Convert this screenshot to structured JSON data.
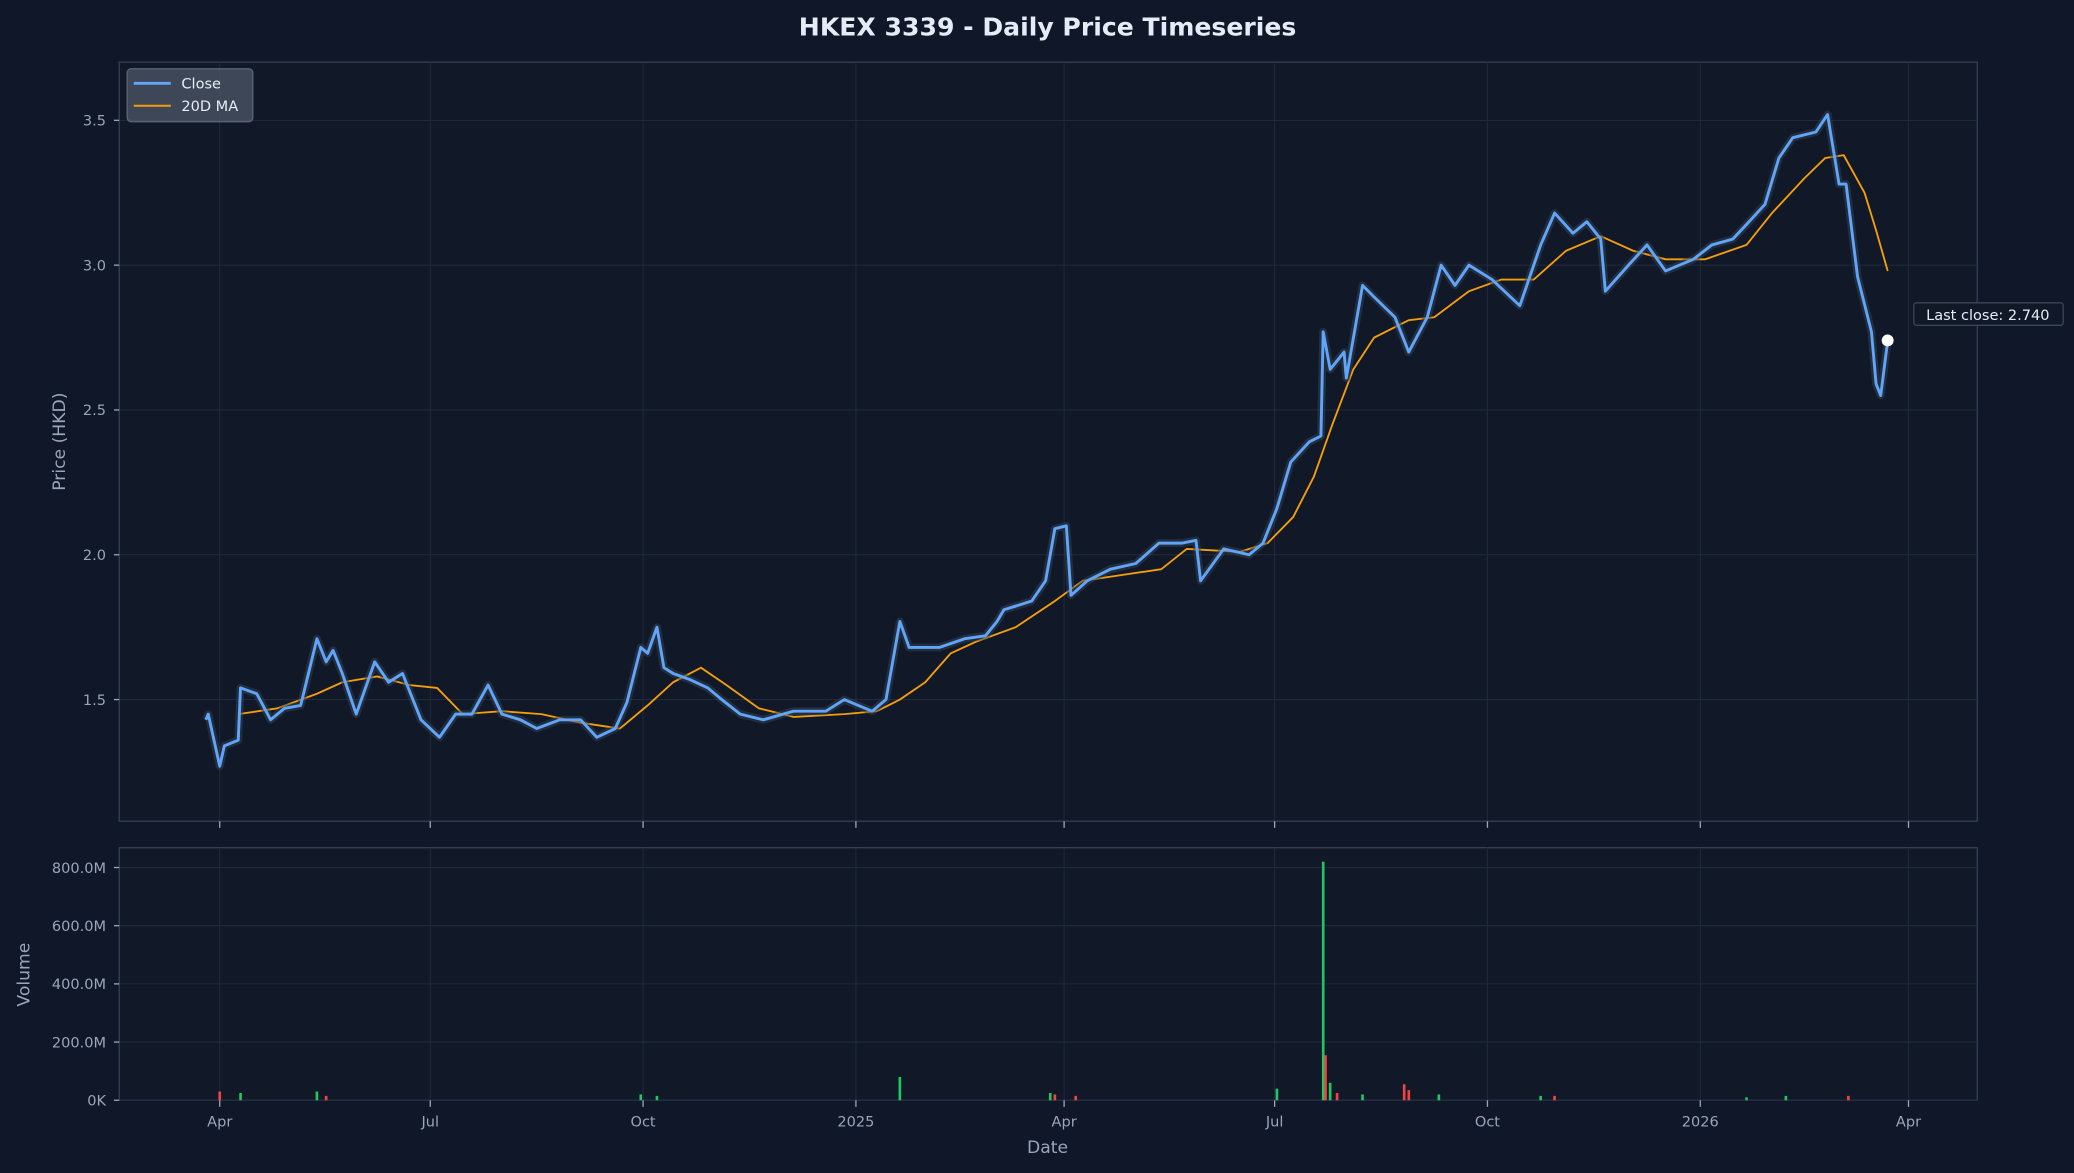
{
  "chart_data": [
    {
      "type": "line",
      "title": "HKEX 3339 - Daily Price Timeseries",
      "xlabel": "",
      "ylabel": "Price (HKD)",
      "ylim": [
        1.08,
        3.71
      ],
      "yticks": [
        "1.5",
        "2.0",
        "2.5",
        "3.0",
        "3.5"
      ],
      "grid": true,
      "legend_position": "top-left",
      "annotation": "Last close: 2.740",
      "series": [
        {
          "name": "Close",
          "color": "#60a5fa",
          "points": [
            [
              "2024-03-26",
              1.43
            ],
            [
              "2024-03-27",
              1.45
            ],
            [
              "2024-04-01",
              1.27
            ],
            [
              "2024-04-03",
              1.34
            ],
            [
              "2024-04-09",
              1.36
            ],
            [
              "2024-04-10",
              1.54
            ],
            [
              "2024-04-17",
              1.52
            ],
            [
              "2024-04-23",
              1.43
            ],
            [
              "2024-04-29",
              1.47
            ],
            [
              "2024-05-06",
              1.48
            ],
            [
              "2024-05-13",
              1.71
            ],
            [
              "2024-05-17",
              1.63
            ],
            [
              "2024-05-20",
              1.67
            ],
            [
              "2024-05-24",
              1.59
            ],
            [
              "2024-05-30",
              1.45
            ],
            [
              "2024-06-07",
              1.63
            ],
            [
              "2024-06-13",
              1.56
            ],
            [
              "2024-06-19",
              1.59
            ],
            [
              "2024-06-27",
              1.43
            ],
            [
              "2024-07-05",
              1.37
            ],
            [
              "2024-07-12",
              1.45
            ],
            [
              "2024-07-19",
              1.45
            ],
            [
              "2024-07-26",
              1.55
            ],
            [
              "2024-08-01",
              1.45
            ],
            [
              "2024-08-09",
              1.43
            ],
            [
              "2024-08-16",
              1.4
            ],
            [
              "2024-08-26",
              1.43
            ],
            [
              "2024-09-04",
              1.43
            ],
            [
              "2024-09-11",
              1.37
            ],
            [
              "2024-09-19",
              1.4
            ],
            [
              "2024-09-24",
              1.49
            ],
            [
              "2024-09-30",
              1.68
            ],
            [
              "2024-10-03",
              1.66
            ],
            [
              "2024-10-07",
              1.75
            ],
            [
              "2024-10-10",
              1.61
            ],
            [
              "2024-10-14",
              1.59
            ],
            [
              "2024-10-21",
              1.57
            ],
            [
              "2024-10-29",
              1.54
            ],
            [
              "2024-11-04",
              1.5
            ],
            [
              "2024-11-12",
              1.45
            ],
            [
              "2024-11-22",
              1.43
            ],
            [
              "2024-12-05",
              1.46
            ],
            [
              "2024-12-19",
              1.46
            ],
            [
              "2024-12-27",
              1.5
            ],
            [
              "2025-01-08",
              1.46
            ],
            [
              "2025-01-14",
              1.5
            ],
            [
              "2025-01-20",
              1.77
            ],
            [
              "2025-01-24",
              1.68
            ],
            [
              "2025-02-06",
              1.68
            ],
            [
              "2025-02-17",
              1.71
            ],
            [
              "2025-02-26",
              1.72
            ],
            [
              "2025-03-03",
              1.77
            ],
            [
              "2025-03-06",
              1.81
            ],
            [
              "2025-03-18",
              1.84
            ],
            [
              "2025-03-24",
              1.91
            ],
            [
              "2025-03-28",
              2.09
            ],
            [
              "2025-04-02",
              2.1
            ],
            [
              "2025-04-04",
              1.86
            ],
            [
              "2025-04-11",
              1.91
            ],
            [
              "2025-04-21",
              1.95
            ],
            [
              "2025-05-02",
              1.97
            ],
            [
              "2025-05-12",
              2.04
            ],
            [
              "2025-05-22",
              2.04
            ],
            [
              "2025-05-28",
              2.05
            ],
            [
              "2025-05-30",
              1.91
            ],
            [
              "2025-06-09",
              2.02
            ],
            [
              "2025-06-20",
              2.0
            ],
            [
              "2025-06-26",
              2.04
            ],
            [
              "2025-07-02",
              2.16
            ],
            [
              "2025-07-08",
              2.32
            ],
            [
              "2025-07-16",
              2.39
            ],
            [
              "2025-07-21",
              2.41
            ],
            [
              "2025-07-22",
              2.77
            ],
            [
              "2025-07-25",
              2.64
            ],
            [
              "2025-07-31",
              2.7
            ],
            [
              "2025-08-01",
              2.61
            ],
            [
              "2025-08-08",
              2.93
            ],
            [
              "2025-08-13",
              2.89
            ],
            [
              "2025-08-22",
              2.82
            ],
            [
              "2025-08-28",
              2.7
            ],
            [
              "2025-09-05",
              2.82
            ],
            [
              "2025-09-11",
              3.0
            ],
            [
              "2025-09-17",
              2.93
            ],
            [
              "2025-09-23",
              3.0
            ],
            [
              "2025-10-03",
              2.95
            ],
            [
              "2025-10-15",
              2.86
            ],
            [
              "2025-10-24",
              3.07
            ],
            [
              "2025-10-30",
              3.18
            ],
            [
              "2025-11-07",
              3.11
            ],
            [
              "2025-11-13",
              3.15
            ],
            [
              "2025-11-19",
              3.09
            ],
            [
              "2025-11-21",
              2.91
            ],
            [
              "2025-12-01",
              3.0
            ],
            [
              "2025-12-09",
              3.07
            ],
            [
              "2025-12-17",
              2.98
            ],
            [
              "2025-12-29",
              3.02
            ],
            [
              "2026-01-06",
              3.07
            ],
            [
              "2026-01-15",
              3.09
            ],
            [
              "2026-01-21",
              3.14
            ],
            [
              "2026-01-29",
              3.21
            ],
            [
              "2026-02-04",
              3.37
            ],
            [
              "2026-02-10",
              3.44
            ],
            [
              "2026-02-20",
              3.46
            ],
            [
              "2026-02-25",
              3.52
            ],
            [
              "2026-03-02",
              3.28
            ],
            [
              "2026-03-05",
              3.28
            ],
            [
              "2026-03-10",
              2.96
            ],
            [
              "2026-03-16",
              2.77
            ],
            [
              "2026-03-18",
              2.59
            ],
            [
              "2026-03-20",
              2.55
            ],
            [
              "2026-03-23",
              2.74
            ]
          ]
        },
        {
          "name": "20D MA",
          "color": "#f59e0b",
          "points": [
            [
              "2024-04-09",
              1.45
            ],
            [
              "2024-04-26",
              1.47
            ],
            [
              "2024-05-13",
              1.52
            ],
            [
              "2024-05-24",
              1.56
            ],
            [
              "2024-06-08",
              1.58
            ],
            [
              "2024-06-22",
              1.55
            ],
            [
              "2024-07-04",
              1.54
            ],
            [
              "2024-07-15",
              1.45
            ],
            [
              "2024-08-01",
              1.46
            ],
            [
              "2024-08-18",
              1.45
            ],
            [
              "2024-09-04",
              1.42
            ],
            [
              "2024-09-21",
              1.4
            ],
            [
              "2024-10-03",
              1.48
            ],
            [
              "2024-10-14",
              1.56
            ],
            [
              "2024-10-26",
              1.61
            ],
            [
              "2024-11-06",
              1.55
            ],
            [
              "2024-11-20",
              1.47
            ],
            [
              "2024-12-05",
              1.44
            ],
            [
              "2024-12-27",
              1.45
            ],
            [
              "2025-01-10",
              1.46
            ],
            [
              "2025-01-20",
              1.5
            ],
            [
              "2025-01-31",
              1.56
            ],
            [
              "2025-02-11",
              1.66
            ],
            [
              "2025-02-22",
              1.7
            ],
            [
              "2025-03-11",
              1.75
            ],
            [
              "2025-03-28",
              1.84
            ],
            [
              "2025-04-09",
              1.91
            ],
            [
              "2025-04-26",
              1.93
            ],
            [
              "2025-05-13",
              1.95
            ],
            [
              "2025-05-24",
              2.02
            ],
            [
              "2025-06-16",
              2.01
            ],
            [
              "2025-06-28",
              2.04
            ],
            [
              "2025-07-09",
              2.13
            ],
            [
              "2025-07-18",
              2.27
            ],
            [
              "2025-07-26",
              2.45
            ],
            [
              "2025-08-04",
              2.64
            ],
            [
              "2025-08-13",
              2.75
            ],
            [
              "2025-08-28",
              2.81
            ],
            [
              "2025-09-08",
              2.82
            ],
            [
              "2025-09-23",
              2.91
            ],
            [
              "2025-10-07",
              2.95
            ],
            [
              "2025-10-21",
              2.95
            ],
            [
              "2025-11-04",
              3.05
            ],
            [
              "2025-11-19",
              3.1
            ],
            [
              "2025-12-03",
              3.05
            ],
            [
              "2025-12-17",
              3.02
            ],
            [
              "2026-01-03",
              3.02
            ],
            [
              "2026-01-21",
              3.07
            ],
            [
              "2026-02-01",
              3.18
            ],
            [
              "2026-02-15",
              3.3
            ],
            [
              "2026-02-24",
              3.37
            ],
            [
              "2026-03-04",
              3.38
            ],
            [
              "2026-03-13",
              3.25
            ],
            [
              "2026-03-18",
              3.12
            ],
            [
              "2026-03-23",
              2.98
            ]
          ]
        }
      ],
      "last_close": {
        "date": "2026-03-23",
        "value": 2.74
      }
    },
    {
      "type": "bar",
      "xlabel": "Date",
      "ylabel": "Volume",
      "ylim": [
        0,
        870
      ],
      "unit": "M",
      "yticks": [
        "0K",
        "200.0M",
        "400.0M",
        "600.0M",
        "800.0M"
      ],
      "xticks": [
        "Apr",
        "Jul",
        "Oct",
        "2025",
        "Apr",
        "Jul",
        "Oct",
        "2026",
        "Apr"
      ],
      "xtick_dates": [
        "2024-04-01",
        "2024-07-01",
        "2024-10-01",
        "2025-01-01",
        "2025-04-01",
        "2025-07-01",
        "2025-10-01",
        "2026-01-01",
        "2026-04-01"
      ],
      "colors": {
        "up": "#22c55e",
        "down": "#ef4444"
      },
      "bars": [
        [
          "2024-04-01",
          30,
          "down"
        ],
        [
          "2024-04-10",
          25,
          "up"
        ],
        [
          "2024-05-13",
          30,
          "up"
        ],
        [
          "2024-05-17",
          15,
          "down"
        ],
        [
          "2024-09-30",
          20,
          "up"
        ],
        [
          "2024-10-07",
          15,
          "up"
        ],
        [
          "2025-01-20",
          80,
          "up"
        ],
        [
          "2025-03-26",
          25,
          "up"
        ],
        [
          "2025-03-28",
          20,
          "down"
        ],
        [
          "2025-04-06",
          15,
          "down"
        ],
        [
          "2025-07-02",
          40,
          "up"
        ],
        [
          "2025-07-22",
          820,
          "up"
        ],
        [
          "2025-07-23",
          155,
          "down"
        ],
        [
          "2025-07-25",
          60,
          "up"
        ],
        [
          "2025-07-28",
          25,
          "down"
        ],
        [
          "2025-08-08",
          20,
          "up"
        ],
        [
          "2025-08-26",
          55,
          "down"
        ],
        [
          "2025-08-28",
          35,
          "down"
        ],
        [
          "2025-09-10",
          20,
          "up"
        ],
        [
          "2025-10-24",
          15,
          "up"
        ],
        [
          "2025-10-30",
          15,
          "down"
        ],
        [
          "2026-01-21",
          10,
          "up"
        ],
        [
          "2026-02-07",
          15,
          "up"
        ],
        [
          "2026-03-06",
          15,
          "down"
        ]
      ]
    }
  ],
  "theme": {
    "background": "#0f1729",
    "panel": "#111827",
    "accent_close": "#60a5fa",
    "accent_ma": "#f59e0b"
  }
}
